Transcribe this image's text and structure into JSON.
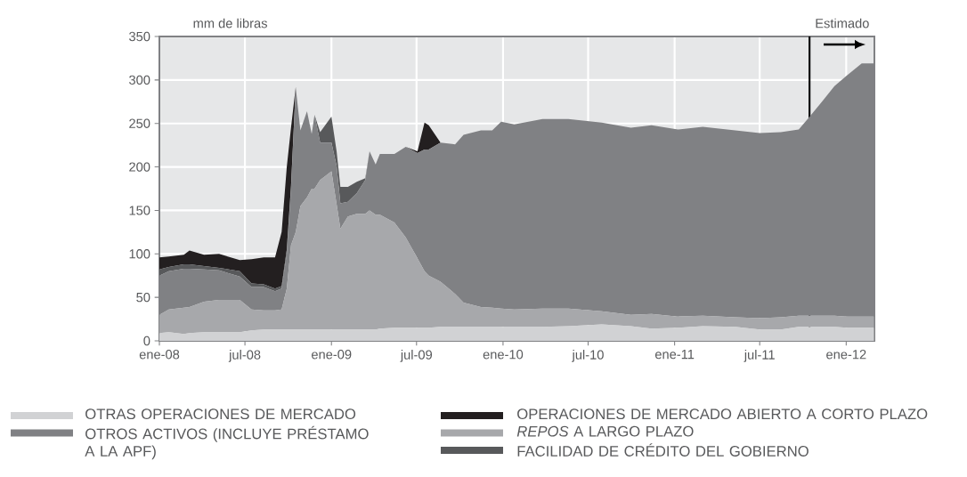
{
  "chart_data": {
    "type": "area",
    "stacked": true,
    "ylabel": "mm de libras",
    "x": [
      "2008-01-01",
      "2008-01-21",
      "2008-02-22",
      "2008-03-05",
      "2008-04-05",
      "2008-05-07",
      "2008-06-20",
      "2008-07-15",
      "2008-08-10",
      "2008-09-03",
      "2008-09-17",
      "2008-09-28",
      "2008-10-07",
      "2008-10-17",
      "2008-10-27",
      "2008-11-10",
      "2008-11-20",
      "2008-11-26",
      "2008-12-08",
      "2009-01-01",
      "2009-01-12",
      "2009-01-20",
      "2009-02-05",
      "2009-02-24",
      "2009-03-14",
      "2009-03-23",
      "2009-04-05",
      "2009-04-14",
      "2009-05-15",
      "2009-06-08",
      "2009-07-03",
      "2009-07-18",
      "2009-07-27",
      "2009-08-21",
      "2009-09-21",
      "2009-10-09",
      "2009-11-15",
      "2009-12-09",
      "2009-12-28",
      "2010-01-25",
      "2010-03-26",
      "2010-05-20",
      "2010-07-30",
      "2010-09-30",
      "2010-11-13",
      "2011-01-08",
      "2011-03-02",
      "2011-05-10",
      "2011-07-01",
      "2011-08-15",
      "2011-09-22",
      "2011-10-11",
      "2011-11-12",
      "2011-12-07",
      "2012-01-02",
      "2012-02-03",
      "2012-02-29"
    ],
    "series": [
      {
        "name": "OTRAS OPERACIONES DE MERCADO",
        "color": "#d1d2d4",
        "values": [
          9,
          10,
          8,
          9,
          10,
          10,
          10,
          12,
          13,
          13,
          13,
          13,
          13,
          13,
          13,
          13,
          13,
          13,
          13,
          13,
          13,
          13,
          13,
          13,
          13,
          13,
          13,
          14,
          15,
          15,
          15,
          15,
          15,
          16,
          16,
          16,
          16,
          16,
          16,
          16,
          16,
          17,
          19,
          17,
          14,
          15,
          17,
          16,
          13,
          13,
          16,
          16,
          16,
          16,
          15,
          15,
          15
        ]
      },
      {
        "name": "*REPOS* A LARGO PLAZO",
        "color": "#a7a8ab",
        "values": [
          21,
          26,
          30,
          30,
          35,
          37,
          37,
          24,
          22,
          22,
          23,
          47,
          97,
          112,
          142,
          152,
          162,
          162,
          172,
          182,
          144,
          116,
          130,
          133,
          133,
          137,
          132,
          131,
          121,
          104,
          80,
          65,
          60,
          52,
          38,
          28,
          23,
          22,
          21,
          20,
          21,
          20,
          15,
          13,
          17,
          13,
          12,
          11,
          13,
          14,
          13,
          13,
          13,
          13,
          13,
          13,
          13
        ]
      },
      {
        "name": "OTROS ACTIVOS (INCLUYE PRÉSTAMO A LA APF)",
        "color": "#808184",
        "values": [
          45,
          44,
          45,
          44,
          37,
          34,
          27,
          26,
          27,
          22,
          24,
          40,
          65,
          167,
          87,
          99,
          63,
          85,
          43,
          33,
          44,
          29,
          17,
          24,
          39,
          68,
          58,
          70,
          79,
          104,
          121,
          140,
          145,
          160,
          172,
          193,
          203,
          204,
          215,
          213,
          218,
          218,
          217,
          215,
          217,
          215,
          217,
          215,
          213,
          213,
          214,
          226,
          247,
          264,
          277,
          291,
          291
        ]
      },
      {
        "name": "FACILIDAD DE CRÉDITO DEL GOBIERNO",
        "color": "#58595b",
        "values": [
          7,
          5,
          5,
          5,
          4,
          3,
          6,
          4,
          3,
          3,
          3,
          5,
          3,
          0,
          0,
          0,
          0,
          0,
          12,
          30,
          17,
          19,
          17,
          13,
          2,
          0,
          0,
          0,
          0,
          0,
          0,
          0,
          0,
          0,
          0,
          0,
          0,
          0,
          0,
          0,
          0,
          0,
          0,
          0,
          0,
          0,
          0,
          0,
          0,
          0,
          0,
          0,
          0,
          0,
          0,
          0,
          0
        ]
      },
      {
        "name": "OPERACIONES DE MERCADO ABIERTO A CORTO PLAZO",
        "color": "#231f20",
        "values": [
          14,
          12,
          11,
          16,
          13,
          16,
          13,
          28,
          31,
          36,
          62,
          95,
          67,
          0,
          0,
          0,
          0,
          0,
          0,
          0,
          0,
          0,
          0,
          0,
          0,
          0,
          0,
          0,
          0,
          0,
          2,
          31,
          28,
          0,
          0,
          0,
          0,
          0,
          0,
          0,
          0,
          0,
          0,
          0,
          0,
          0,
          0,
          0,
          0,
          0,
          0,
          0,
          0,
          0,
          0,
          0,
          0
        ]
      }
    ],
    "xlim": [
      "2008-01-01",
      "2012-03-01"
    ],
    "xticks": [
      {
        "value": "2008-01-01",
        "label": "ene-08"
      },
      {
        "value": "2008-07-01",
        "label": "jul-08"
      },
      {
        "value": "2009-01-01",
        "label": "ene-09"
      },
      {
        "value": "2009-07-01",
        "label": "jul-09"
      },
      {
        "value": "2010-01-01",
        "label": "ene-10"
      },
      {
        "value": "2010-07-01",
        "label": "jul-10"
      },
      {
        "value": "2011-01-01",
        "label": "ene-11"
      },
      {
        "value": "2011-07-01",
        "label": "jul-11"
      },
      {
        "value": "2012-01-01",
        "label": "ene-12"
      }
    ],
    "ylim": [
      0,
      350
    ],
    "yticks": [
      0,
      50,
      100,
      150,
      200,
      250,
      300,
      350
    ],
    "ref_lines": [
      {
        "axis": "x",
        "value": "2011-10-15",
        "label": "Estimado",
        "color": "#000000"
      }
    ],
    "grid": true,
    "legend": "bottom",
    "marker": "none"
  }
}
